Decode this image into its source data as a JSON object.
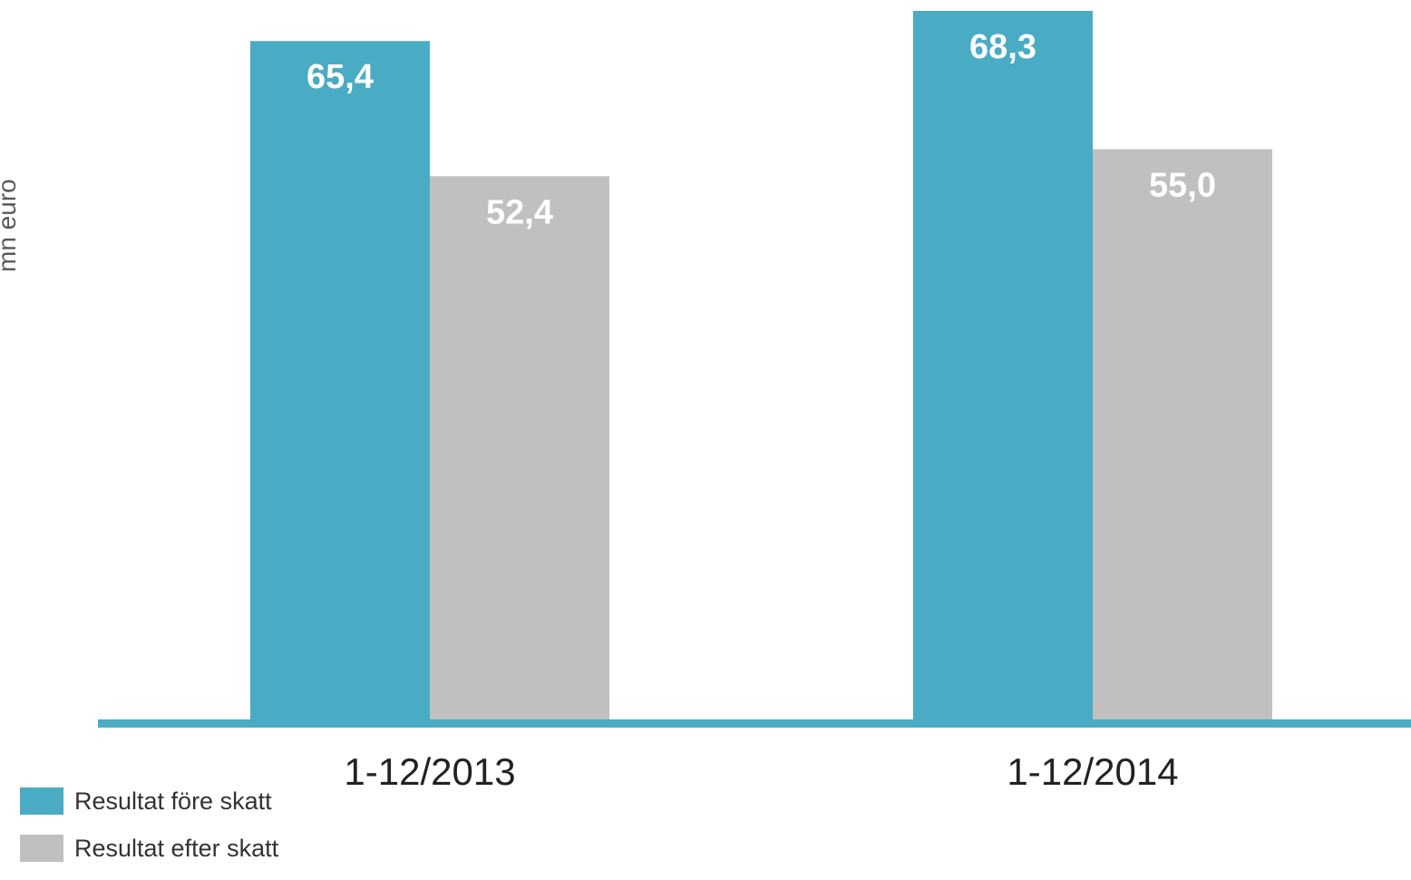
{
  "chart_data": {
    "type": "bar",
    "categories": [
      "1-12/2013",
      "1-12/2014"
    ],
    "series": [
      {
        "name": "Resultat före skatt",
        "values": [
          65.4,
          68.3
        ],
        "labels": [
          "65,4",
          "68,3"
        ],
        "color": "#4aabc4"
      },
      {
        "name": "Resultat efter skatt",
        "values": [
          52.4,
          55.0
        ],
        "labels": [
          "52,4",
          "55,0"
        ],
        "color": "#c0c0c0"
      }
    ],
    "ylabel": "mn euro",
    "xlabel": "",
    "ylim": [
      0,
      68.3
    ],
    "grid": false,
    "legend_position": "bottom-left",
    "axis_color": "#4aabc4"
  }
}
